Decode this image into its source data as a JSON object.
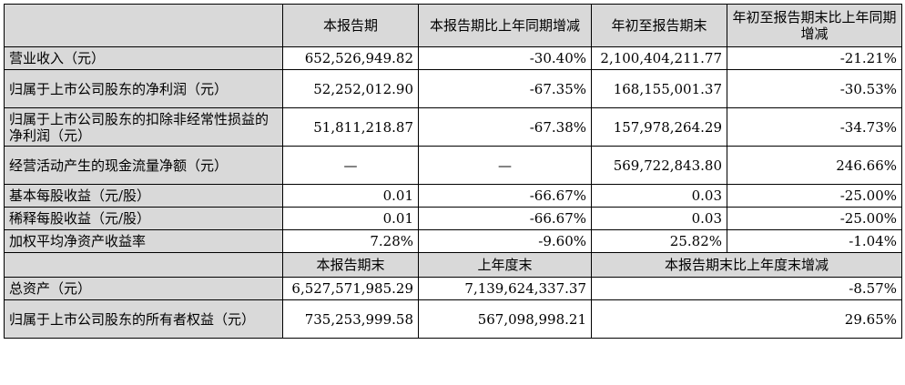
{
  "header": [
    "",
    "本报告期",
    "本报告期比上年同期增减",
    "年初至报告期末",
    "年初至报告期末比上年同期增减"
  ],
  "rows": [
    [
      "营业收入（元）",
      "652,526,949.82",
      "-30.40%",
      "2,100,404,211.77",
      "-21.21%"
    ],
    [
      "归属于上市公司股东的净利润（元）",
      "52,252,012.90",
      "-67.35%",
      "168,155,001.37",
      "-30.53%"
    ],
    [
      "归属于上市公司股东的扣除非经常性损益的净利润（元）",
      "51,811,218.87",
      "-67.38%",
      "157,978,264.29",
      "-34.73%"
    ],
    [
      "经营活动产生的现金流量净额（元）",
      "—",
      "—",
      "569,722,843.80",
      "246.66%"
    ],
    [
      "基本每股收益（元/股）",
      "0.01",
      "-66.67%",
      "0.03",
      "-25.00%"
    ],
    [
      "稀释每股收益（元/股）",
      "0.01",
      "-66.67%",
      "0.03",
      "-25.00%"
    ],
    [
      "加权平均净资产收益率",
      "7.28%",
      "-9.60%",
      "25.82%",
      "-1.04%"
    ]
  ],
  "header2": [
    "",
    "本报告期末",
    "上年度末",
    "本报告期末比上年度末增减"
  ],
  "rows2": [
    [
      "总资产（元）",
      "6,527,571,985.29",
      "7,139,624,337.37",
      "-8.57%"
    ],
    [
      "归属于上市公司股东的所有者权益（元）",
      "735,253,999.58",
      "567,098,998.21",
      "29.65%"
    ]
  ]
}
